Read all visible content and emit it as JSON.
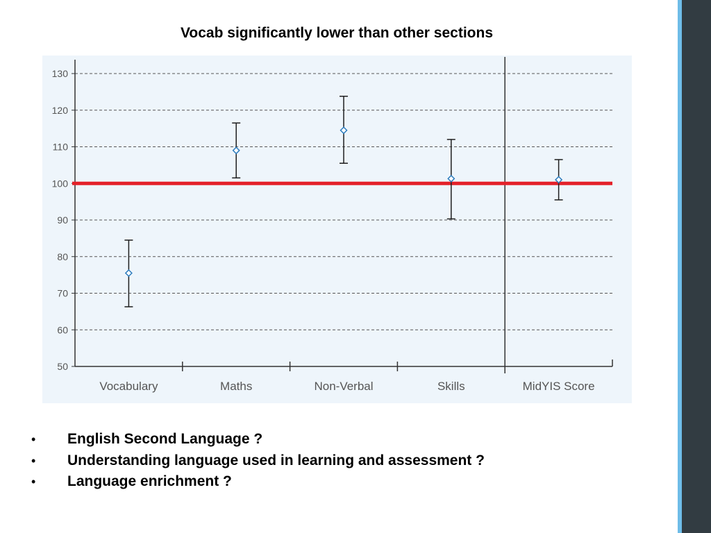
{
  "slide": {
    "title": "Vocab significantly lower than other sections",
    "bullets": [
      "English Second Language ?",
      "Understanding language used in learning and assessment ?",
      "Language enrichment ?"
    ],
    "bullet_glyph": "•"
  },
  "theme": {
    "plot_background": "#eef5fb",
    "reference_line": "#e32129",
    "marker": "#2b7bbd",
    "errorbar": "#1e1e1e",
    "side_accent": "#6fbde8",
    "side_bar": "#323c42"
  },
  "chart_data": {
    "type": "scatter",
    "title": "",
    "xlabel": "",
    "ylabel": "",
    "categories": [
      "Vocabulary",
      "Maths",
      "Non-Verbal",
      "Skills",
      "MidYIS Score"
    ],
    "values": [
      75.5,
      109,
      114.5,
      101.3,
      101
    ],
    "error_low": [
      66.3,
      101.5,
      105.5,
      90.3,
      95.5
    ],
    "error_high": [
      84.5,
      116.5,
      123.8,
      112,
      106.5
    ],
    "ylim": [
      50,
      130
    ],
    "yticks": [
      50,
      60,
      70,
      80,
      90,
      100,
      110,
      120,
      130
    ],
    "reference_line": 100,
    "grid": true,
    "grid_style": "dashed",
    "separator_before": "MidYIS Score"
  }
}
